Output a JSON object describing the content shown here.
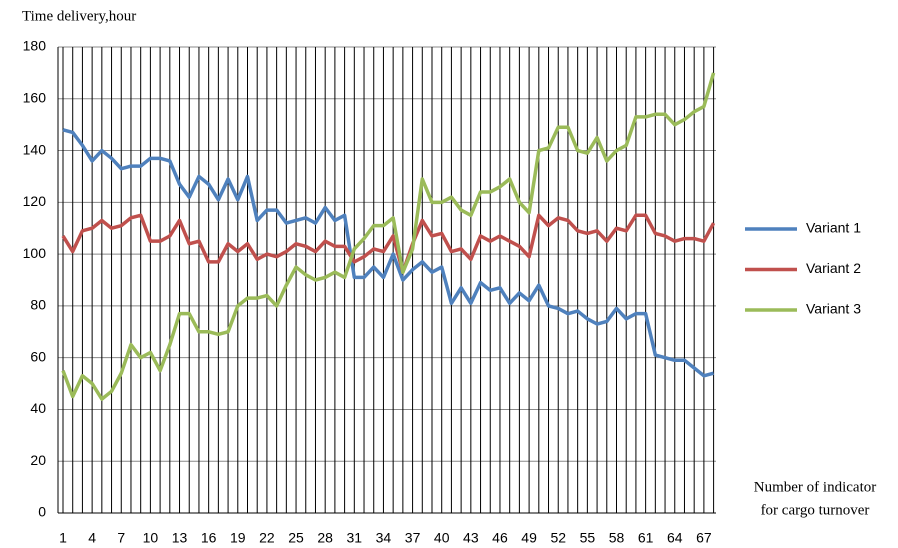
{
  "chart_data": {
    "type": "line",
    "y_label": "Time delivery,hour",
    "x_label": [
      "Number of indicator",
      "for cargo turnover"
    ],
    "categories": [
      1,
      null,
      null,
      4,
      null,
      null,
      7,
      null,
      null,
      10,
      null,
      null,
      13,
      null,
      null,
      16,
      null,
      null,
      19,
      null,
      null,
      22,
      null,
      null,
      25,
      null,
      null,
      28,
      null,
      null,
      31,
      null,
      null,
      34,
      null,
      null,
      37,
      null,
      null,
      40,
      null,
      null,
      43,
      null,
      null,
      46,
      null,
      null,
      49,
      null,
      null,
      52,
      null,
      null,
      55,
      null,
      null,
      58,
      null,
      null,
      61,
      null,
      null,
      64,
      null,
      null,
      67,
      null
    ],
    "series": [
      {
        "name": "Variant 1",
        "color": "#4f81bd",
        "values": [
          148,
          147,
          142,
          136,
          140,
          137,
          133,
          134,
          134,
          137,
          137,
          136,
          127,
          122,
          130,
          127,
          121,
          129,
          121,
          130,
          113,
          117,
          117,
          112,
          113,
          114,
          112,
          118,
          113,
          115,
          91,
          91,
          95,
          91,
          100,
          90,
          94,
          97,
          93,
          95,
          81,
          87,
          81,
          89,
          86,
          87,
          81,
          85,
          82,
          88,
          80,
          79,
          77,
          78,
          75,
          73,
          74,
          79,
          75,
          77,
          77,
          61,
          60,
          59,
          59,
          56,
          53,
          54
        ]
      },
      {
        "name": "Variant 2",
        "color": "#c0504d",
        "values": [
          107,
          101,
          109,
          110,
          113,
          110,
          111,
          114,
          115,
          105,
          105,
          107,
          113,
          104,
          105,
          97,
          97,
          104,
          101,
          104,
          98,
          100,
          99,
          101,
          104,
          103,
          101,
          105,
          103,
          103,
          97,
          99,
          102,
          101,
          107,
          93,
          104,
          113,
          107,
          108,
          101,
          102,
          98,
          107,
          105,
          107,
          105,
          103,
          99,
          115,
          111,
          114,
          113,
          109,
          108,
          109,
          105,
          110,
          109,
          115,
          115,
          108,
          107,
          105,
          106,
          106,
          105,
          112
        ]
      },
      {
        "name": "Variant 3",
        "color": "#9bbb59",
        "values": [
          55,
          45,
          53,
          50,
          44,
          47,
          54,
          65,
          60,
          62,
          55,
          65,
          77,
          77,
          70,
          70,
          69,
          70,
          80,
          83,
          83,
          84,
          80,
          88,
          95,
          92,
          90,
          91,
          93,
          91,
          102,
          106,
          111,
          111,
          114,
          93,
          102,
          129,
          120,
          120,
          122,
          117,
          115,
          124,
          124,
          126,
          129,
          120,
          116,
          140,
          141,
          149,
          149,
          140,
          139,
          145,
          136,
          140,
          142,
          153,
          153,
          154,
          154,
          150,
          152,
          155,
          157,
          170
        ]
      }
    ],
    "ylim": [
      0,
      180
    ],
    "yticks": [
      0,
      20,
      40,
      60,
      80,
      100,
      120,
      140,
      160,
      180
    ],
    "grid": true,
    "legend": "right"
  }
}
